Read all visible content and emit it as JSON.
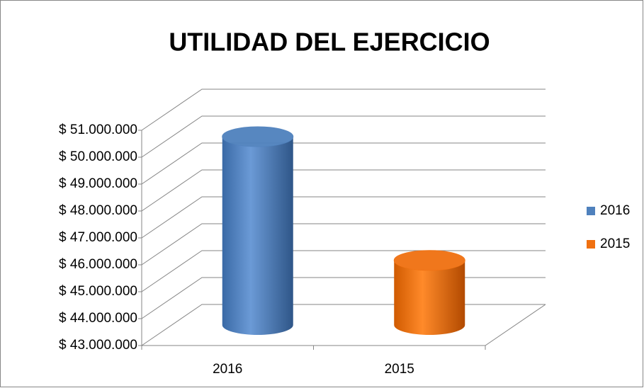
{
  "chart_data": {
    "type": "bar3d",
    "title": "UTILIDAD DEL EJERCICIO",
    "categories": [
      "2016",
      "2015"
    ],
    "values": [
      50000000,
      45400000
    ],
    "colors": [
      "#4f81bd",
      "#f07010"
    ],
    "ylim": [
      43000000,
      51000000
    ],
    "yticks": [
      {
        "value": 43000000,
        "label": "$ 43.000.000"
      },
      {
        "value": 44000000,
        "label": "$ 44.000.000"
      },
      {
        "value": 45000000,
        "label": "$ 45.000.000"
      },
      {
        "value": 46000000,
        "label": "$ 46.000.000"
      },
      {
        "value": 47000000,
        "label": "$ 47.000.000"
      },
      {
        "value": 48000000,
        "label": "$ 48.000.000"
      },
      {
        "value": 49000000,
        "label": "$ 49.000.000"
      },
      {
        "value": 50000000,
        "label": "$ 50.000.000"
      },
      {
        "value": 51000000,
        "label": "$ 51.000.000"
      }
    ],
    "grid": true,
    "legend": "right"
  }
}
